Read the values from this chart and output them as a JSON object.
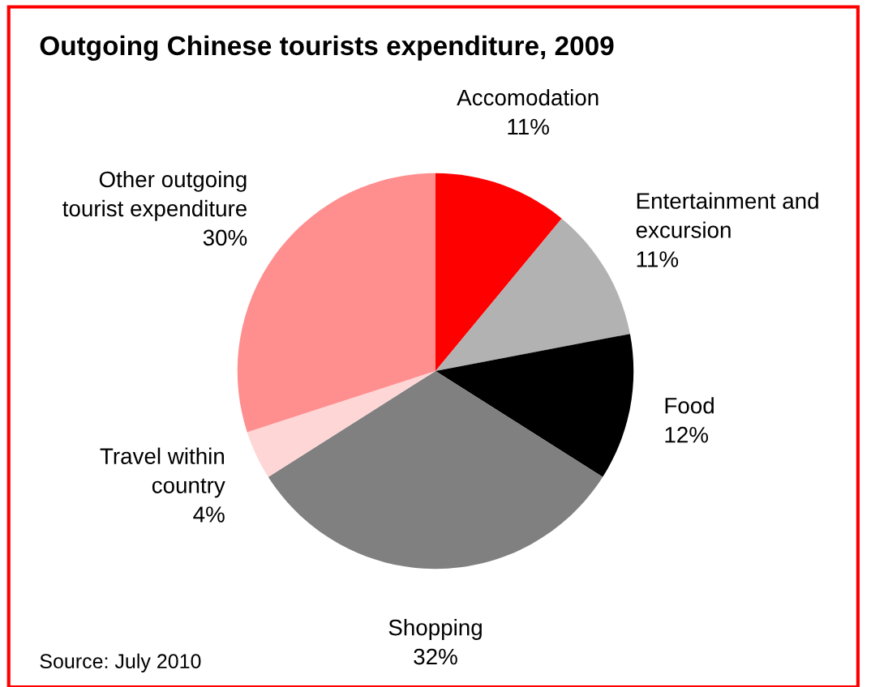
{
  "chart_data": {
    "type": "pie",
    "title": "Outgoing Chinese tourists expenditure, 2009",
    "categories": [
      "Accomodation",
      "Entertainment and\nexcursion",
      "Food",
      "Shopping",
      "Travel within\ncountry",
      "Other outgoing\ntourist expenditure"
    ],
    "values": [
      11,
      11,
      12,
      32,
      4,
      30
    ],
    "colors": [
      "#ff0000",
      "#b2b2b2",
      "#000000",
      "#808080",
      "#ffd6d6",
      "#ff8f8f"
    ],
    "value_labels": [
      "11%",
      "11%",
      "12%",
      "32%",
      "4%",
      "30%"
    ],
    "legend": false,
    "annotations": [
      "Source: July 2010"
    ]
  }
}
